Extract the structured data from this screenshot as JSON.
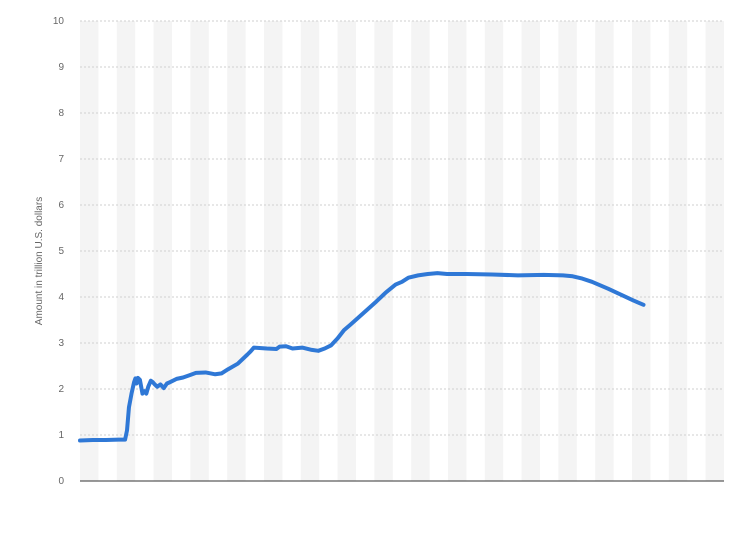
{
  "chart_data": {
    "type": "line",
    "title": "",
    "xlabel": "",
    "ylabel": "Amount in trillion U.S. dollars",
    "ylim": [
      0,
      10
    ],
    "y_ticks": [
      0,
      1,
      2,
      3,
      4,
      5,
      6,
      7,
      8,
      9,
      10
    ],
    "xlim": [
      0,
      1
    ],
    "grid": true,
    "legend": "none",
    "colors": {
      "line": "#2f78d6",
      "grid": "#cfcfcf",
      "band": "#f4f4f4",
      "axis": "#333333",
      "tick_text": "#666666"
    },
    "series": [
      {
        "values": [
          [
            0.0,
            0.88
          ],
          [
            0.02,
            0.89
          ],
          [
            0.04,
            0.89
          ],
          [
            0.06,
            0.9
          ],
          [
            0.07,
            0.9
          ],
          [
            0.073,
            1.1
          ],
          [
            0.076,
            1.6
          ],
          [
            0.08,
            1.9
          ],
          [
            0.084,
            2.15
          ],
          [
            0.086,
            2.23
          ],
          [
            0.088,
            2.12
          ],
          [
            0.09,
            2.24
          ],
          [
            0.093,
            2.2
          ],
          [
            0.097,
            1.9
          ],
          [
            0.1,
            1.95
          ],
          [
            0.103,
            1.9
          ],
          [
            0.106,
            2.05
          ],
          [
            0.11,
            2.18
          ],
          [
            0.113,
            2.15
          ],
          [
            0.116,
            2.1
          ],
          [
            0.12,
            2.05
          ],
          [
            0.125,
            2.1
          ],
          [
            0.13,
            2.02
          ],
          [
            0.135,
            2.12
          ],
          [
            0.14,
            2.15
          ],
          [
            0.15,
            2.22
          ],
          [
            0.16,
            2.25
          ],
          [
            0.17,
            2.3
          ],
          [
            0.18,
            2.35
          ],
          [
            0.195,
            2.36
          ],
          [
            0.21,
            2.32
          ],
          [
            0.22,
            2.34
          ],
          [
            0.23,
            2.43
          ],
          [
            0.245,
            2.55
          ],
          [
            0.26,
            2.75
          ],
          [
            0.265,
            2.82
          ],
          [
            0.27,
            2.9
          ],
          [
            0.29,
            2.88
          ],
          [
            0.305,
            2.87
          ],
          [
            0.31,
            2.92
          ],
          [
            0.32,
            2.93
          ],
          [
            0.33,
            2.88
          ],
          [
            0.345,
            2.9
          ],
          [
            0.36,
            2.85
          ],
          [
            0.37,
            2.83
          ],
          [
            0.38,
            2.88
          ],
          [
            0.39,
            2.95
          ],
          [
            0.4,
            3.1
          ],
          [
            0.41,
            3.28
          ],
          [
            0.42,
            3.4
          ],
          [
            0.44,
            3.65
          ],
          [
            0.46,
            3.9
          ],
          [
            0.475,
            4.1
          ],
          [
            0.49,
            4.27
          ],
          [
            0.5,
            4.33
          ],
          [
            0.51,
            4.42
          ],
          [
            0.525,
            4.47
          ],
          [
            0.54,
            4.5
          ],
          [
            0.555,
            4.52
          ],
          [
            0.57,
            4.5
          ],
          [
            0.6,
            4.5
          ],
          [
            0.64,
            4.49
          ],
          [
            0.68,
            4.47
          ],
          [
            0.72,
            4.48
          ],
          [
            0.75,
            4.47
          ],
          [
            0.765,
            4.45
          ],
          [
            0.78,
            4.4
          ],
          [
            0.8,
            4.3
          ],
          [
            0.82,
            4.18
          ],
          [
            0.84,
            4.05
          ],
          [
            0.86,
            3.92
          ],
          [
            0.875,
            3.83
          ],
          [
            0.795,
            4.33
          ]
        ]
      }
    ]
  }
}
